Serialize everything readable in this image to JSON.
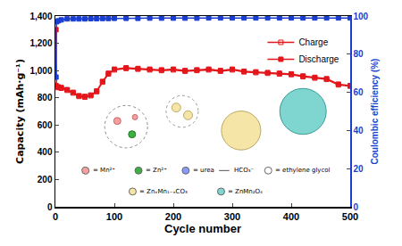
{
  "chart_data": {
    "type": "line",
    "x_label": "Cycle number",
    "y_label": "Capacity (mAh·g⁻¹)",
    "y2_label": "Coulombic efficiency (%)",
    "x": [
      1,
      2,
      5,
      10,
      20,
      30,
      40,
      50,
      60,
      70,
      80,
      90,
      100,
      120,
      140,
      160,
      180,
      200,
      220,
      240,
      260,
      280,
      300,
      320,
      340,
      360,
      380,
      400,
      420,
      440,
      460,
      480,
      500
    ],
    "xlim": [
      0,
      500
    ],
    "xticks": [
      0,
      100,
      200,
      300,
      400,
      500
    ],
    "ylim": [
      0,
      1400
    ],
    "yticks": [
      0,
      200,
      400,
      600,
      800,
      {
        "value": 1000,
        "label": "1,000"
      },
      {
        "value": 1200,
        "label": "1,200"
      },
      {
        "value": 1400,
        "label": "1,400"
      }
    ],
    "y2lim": [
      0,
      100
    ],
    "y2ticks": [
      0,
      20,
      40,
      60,
      80,
      100
    ],
    "legend": "upper right",
    "grid": false,
    "series": [
      {
        "name": "Charge",
        "color": "#e3161b",
        "marker": "square-open",
        "values": [
          890,
          880,
          875,
          870,
          855,
          835,
          810,
          805,
          815,
          845,
          915,
          975,
          1005,
          1015,
          1010,
          1005,
          1000,
          1005,
          995,
          1000,
          1005,
          995,
          1005,
          990,
          985,
          980,
          975,
          970,
          955,
          945,
          935,
          895,
          885
        ]
      },
      {
        "name": "Discharge",
        "color": "#e3161b",
        "marker": "square",
        "values": [
          1300,
          885,
          880,
          875,
          860,
          840,
          815,
          810,
          820,
          850,
          920,
          980,
          1010,
          1020,
          1015,
          1010,
          1005,
          1010,
          1000,
          1005,
          1010,
          1000,
          1010,
          995,
          990,
          985,
          980,
          975,
          960,
          950,
          940,
          900,
          890
        ]
      },
      {
        "color": "#1a3fd0",
        "marker": "square",
        "axis": "y2",
        "values": [
          68,
          97,
          97.5,
          98,
          98.5,
          98.5,
          98.5,
          98.5,
          98.6,
          98.6,
          98.7,
          98.7,
          98.8,
          98.8,
          98.8,
          98.9,
          98.9,
          98.9,
          98.9,
          98.9,
          99,
          99,
          99,
          99,
          99,
          99,
          99,
          99,
          99,
          99,
          99,
          99,
          99
        ]
      }
    ],
    "annotations": [
      "= Mn²⁺",
      "= Zn²⁺",
      "= urea",
      "HCO₃⁻",
      "= ethylene glycol",
      "= ZnₓMn₁₋ₓCO₃",
      "= ZnMn₂O₄"
    ]
  }
}
